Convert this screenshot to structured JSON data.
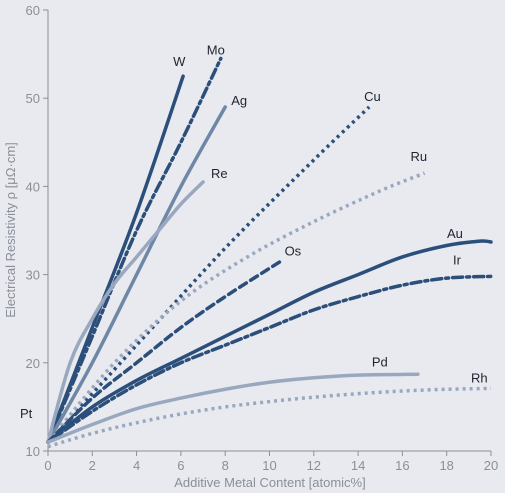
{
  "chart_data": {
    "type": "line",
    "title": "",
    "xlabel": "Additive Metal Content [atomic%]",
    "ylabel": "Electrical Resistivity ρ [μΩ·cm]",
    "xlim": [
      0,
      20
    ],
    "ylim": [
      10,
      60
    ],
    "x_ticks": [
      "0",
      "2",
      "4",
      "6",
      "8",
      "10",
      "12",
      "14",
      "16",
      "18",
      "20"
    ],
    "y_ticks": [
      "10",
      "20",
      "30",
      "40",
      "50",
      "60"
    ],
    "grid": false,
    "origin_label": "Pt",
    "series": [
      {
        "name": "W",
        "color": "#2b4f7a",
        "dash": "solid",
        "width": 3.5,
        "points": [
          [
            0,
            11
          ],
          [
            2,
            24
          ],
          [
            4,
            37
          ],
          [
            6.1,
            52.5
          ]
        ]
      },
      {
        "name": "Mo",
        "color": "#2b4f7a",
        "dash": "dashdot",
        "width": 3.5,
        "points": [
          [
            0,
            11
          ],
          [
            2,
            23
          ],
          [
            4,
            35
          ],
          [
            6,
            45
          ],
          [
            7.8,
            54.5
          ]
        ]
      },
      {
        "name": "Ag",
        "color": "#6f87a6",
        "dash": "solid",
        "width": 3.5,
        "points": [
          [
            0,
            11
          ],
          [
            2,
            20
          ],
          [
            4,
            30
          ],
          [
            6,
            40
          ],
          [
            8,
            49
          ]
        ]
      },
      {
        "name": "Re",
        "color": "#9aa8bf",
        "dash": "solid",
        "width": 3.5,
        "points": [
          [
            0,
            11
          ],
          [
            1,
            20
          ],
          [
            2,
            25
          ],
          [
            3,
            29
          ],
          [
            4,
            32
          ],
          [
            5,
            35
          ],
          [
            6,
            38
          ],
          [
            7,
            40.5
          ]
        ]
      },
      {
        "name": "Cu",
        "color": "#2b4f7a",
        "dash": "dotted",
        "width": 3.5,
        "points": [
          [
            0,
            11
          ],
          [
            4,
            22
          ],
          [
            8,
            33
          ],
          [
            12,
            43
          ],
          [
            14.5,
            49
          ]
        ]
      },
      {
        "name": "Ru",
        "color": "#9aa8bf",
        "dash": "dotted",
        "width": 3.5,
        "points": [
          [
            0,
            11
          ],
          [
            3,
            20
          ],
          [
            6,
            27
          ],
          [
            9,
            32
          ],
          [
            12,
            36
          ],
          [
            15,
            39.5
          ],
          [
            17,
            41.5
          ]
        ]
      },
      {
        "name": "Os",
        "color": "#2b4f7a",
        "dash": "dashed",
        "width": 3.5,
        "points": [
          [
            0,
            11
          ],
          [
            2,
            16
          ],
          [
            4,
            20
          ],
          [
            6,
            24
          ],
          [
            8,
            27.5
          ],
          [
            10.5,
            31.5
          ]
        ]
      },
      {
        "name": "Au",
        "color": "#2b4f7a",
        "dash": "solid",
        "width": 3.5,
        "points": [
          [
            0,
            11
          ],
          [
            2,
            15
          ],
          [
            4,
            18
          ],
          [
            6,
            20.5
          ],
          [
            8,
            23
          ],
          [
            10,
            25.5
          ],
          [
            12,
            28
          ],
          [
            14,
            30
          ],
          [
            16,
            32
          ],
          [
            18,
            33.3
          ],
          [
            19.5,
            33.8
          ],
          [
            20,
            33.7
          ]
        ]
      },
      {
        "name": "Ir",
        "color": "#2b4f7a",
        "dash": "dashdot",
        "width": 3.5,
        "points": [
          [
            0,
            11
          ],
          [
            2,
            14.5
          ],
          [
            4,
            17.5
          ],
          [
            6,
            20
          ],
          [
            8,
            22
          ],
          [
            10,
            24
          ],
          [
            12,
            26
          ],
          [
            14,
            27.5
          ],
          [
            16,
            28.8
          ],
          [
            18,
            29.6
          ],
          [
            20,
            29.8
          ]
        ]
      },
      {
        "name": "Pd",
        "color": "#9aa8bf",
        "dash": "solid",
        "width": 3.5,
        "points": [
          [
            0,
            11
          ],
          [
            2,
            13
          ],
          [
            4,
            14.8
          ],
          [
            6,
            16
          ],
          [
            8,
            17
          ],
          [
            10,
            17.8
          ],
          [
            12,
            18.3
          ],
          [
            14,
            18.6
          ],
          [
            16.7,
            18.7
          ]
        ]
      },
      {
        "name": "Rh",
        "color": "#9aa8bf",
        "dash": "dotted",
        "width": 3.5,
        "points": [
          [
            0,
            10.5
          ],
          [
            2,
            12
          ],
          [
            4,
            13.2
          ],
          [
            6,
            14.2
          ],
          [
            8,
            15
          ],
          [
            10,
            15.6
          ],
          [
            12,
            16.1
          ],
          [
            14,
            16.5
          ],
          [
            16,
            16.8
          ],
          [
            18,
            17
          ],
          [
            20,
            17.1
          ]
        ]
      }
    ]
  }
}
